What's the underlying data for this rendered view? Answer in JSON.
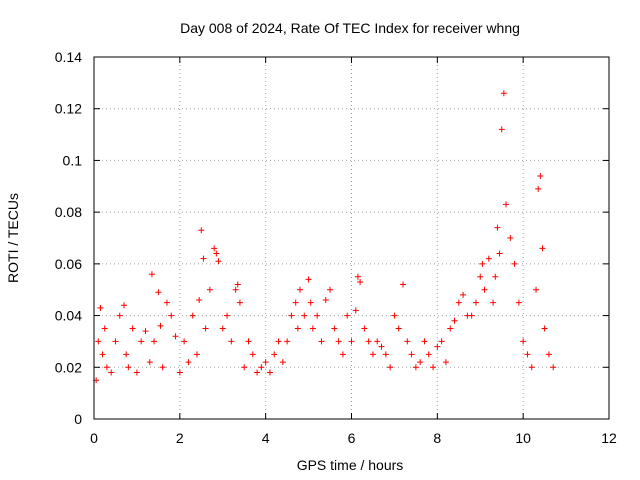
{
  "chart_data": {
    "type": "scatter",
    "title": "Day 008 of 2024, Rate Of TEC Index for receiver whng",
    "xlabel": "GPS time / hours",
    "ylabel": "ROTI / TECUs",
    "xlim": [
      0,
      12
    ],
    "ylim": [
      0,
      0.14
    ],
    "xticks": [
      0,
      2,
      4,
      6,
      8,
      10,
      12
    ],
    "xtick_labels": [
      "0",
      "2",
      "4",
      "6",
      "8",
      "10",
      "12"
    ],
    "yticks": [
      0,
      0.02,
      0.04,
      0.06,
      0.08,
      0.1,
      0.12,
      0.14
    ],
    "ytick_labels": [
      "0",
      "0.02",
      "0.04",
      "0.06",
      "0.08",
      "0.1",
      "0.12",
      "0.14"
    ],
    "grid": true,
    "marker": "+",
    "color": "#ff0000",
    "series": [
      {
        "name": "ROTI",
        "x": [
          0.05,
          0.1,
          0.15,
          0.2,
          0.25,
          0.3,
          0.4,
          0.5,
          0.6,
          0.7,
          0.75,
          0.8,
          0.9,
          1.0,
          1.1,
          1.2,
          1.3,
          1.35,
          1.4,
          1.5,
          1.55,
          1.6,
          1.7,
          1.8,
          1.9,
          2.0,
          2.1,
          2.2,
          2.3,
          2.4,
          2.45,
          2.5,
          2.55,
          2.6,
          2.7,
          2.8,
          2.85,
          2.9,
          3.0,
          3.1,
          3.2,
          3.3,
          3.35,
          3.4,
          3.5,
          3.6,
          3.7,
          3.8,
          3.9,
          4.0,
          4.1,
          4.2,
          4.3,
          4.4,
          4.5,
          4.6,
          4.7,
          4.75,
          4.8,
          4.9,
          5.0,
          5.05,
          5.1,
          5.2,
          5.3,
          5.4,
          5.5,
          5.6,
          5.7,
          5.8,
          5.9,
          6.0,
          6.1,
          6.15,
          6.2,
          6.3,
          6.4,
          6.5,
          6.6,
          6.7,
          6.8,
          6.9,
          7.0,
          7.1,
          7.2,
          7.3,
          7.4,
          7.5,
          7.6,
          7.7,
          7.8,
          7.9,
          8.0,
          8.1,
          8.2,
          8.3,
          8.4,
          8.5,
          8.6,
          8.7,
          8.8,
          8.9,
          9.0,
          9.05,
          9.1,
          9.2,
          9.3,
          9.35,
          9.4,
          9.45,
          9.5,
          9.55,
          9.6,
          9.7,
          9.8,
          9.9,
          10.0,
          10.1,
          10.2,
          10.3,
          10.35,
          10.4,
          10.45,
          10.5,
          10.6,
          10.7
        ],
        "y": [
          0.015,
          0.03,
          0.043,
          0.025,
          0.035,
          0.02,
          0.018,
          0.03,
          0.04,
          0.044,
          0.025,
          0.02,
          0.035,
          0.018,
          0.03,
          0.034,
          0.022,
          0.056,
          0.03,
          0.049,
          0.036,
          0.02,
          0.045,
          0.04,
          0.032,
          0.018,
          0.03,
          0.022,
          0.04,
          0.025,
          0.046,
          0.073,
          0.062,
          0.035,
          0.05,
          0.066,
          0.064,
          0.061,
          0.035,
          0.04,
          0.03,
          0.05,
          0.052,
          0.045,
          0.02,
          0.03,
          0.025,
          0.018,
          0.02,
          0.022,
          0.018,
          0.025,
          0.03,
          0.022,
          0.03,
          0.04,
          0.045,
          0.035,
          0.05,
          0.04,
          0.054,
          0.045,
          0.035,
          0.04,
          0.03,
          0.046,
          0.05,
          0.035,
          0.03,
          0.025,
          0.04,
          0.03,
          0.042,
          0.055,
          0.053,
          0.035,
          0.03,
          0.025,
          0.03,
          0.028,
          0.025,
          0.02,
          0.04,
          0.035,
          0.052,
          0.03,
          0.025,
          0.02,
          0.022,
          0.03,
          0.025,
          0.02,
          0.028,
          0.03,
          0.022,
          0.035,
          0.038,
          0.045,
          0.048,
          0.04,
          0.04,
          0.045,
          0.055,
          0.06,
          0.05,
          0.062,
          0.045,
          0.055,
          0.074,
          0.064,
          0.112,
          0.126,
          0.083,
          0.07,
          0.06,
          0.045,
          0.03,
          0.025,
          0.02,
          0.05,
          0.089,
          0.094,
          0.066,
          0.035,
          0.025,
          0.02
        ]
      }
    ]
  }
}
